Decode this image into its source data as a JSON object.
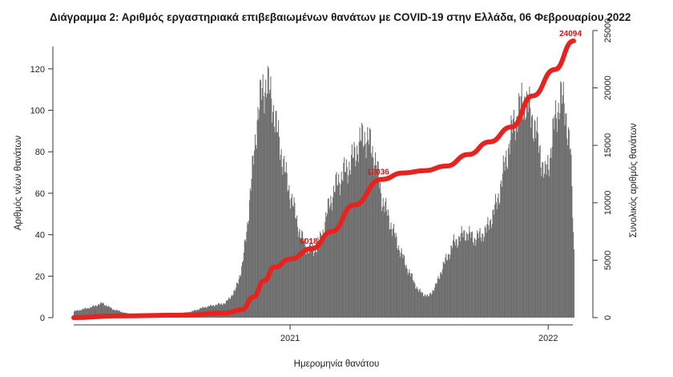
{
  "chart_data": {
    "type": "bar",
    "title": "Διάγραμμα 2: Αριθμός εργαστηριακά επιβεβαιωμένων θανάτων με COVID-19 στην Ελλάδα, 06 Φεβρουαρίου 2022",
    "xlabel": "Ημερομηνία θανάτου",
    "ylabel": "Αριθμός νέων θανάτων",
    "y2label": "Συνολικός αριθμός θανάτων",
    "x_ticks": [
      "2021",
      "2022"
    ],
    "y_ticks": [
      0,
      20,
      40,
      60,
      80,
      100,
      120
    ],
    "y2_ticks": [
      0,
      5000,
      10000,
      15000,
      20000,
      25000
    ],
    "ylim": [
      0,
      130
    ],
    "y2lim": [
      0,
      25000
    ],
    "xlim": [
      "2020-03-01",
      "2022-02-06"
    ],
    "grid": false,
    "series": [
      {
        "type": "bar",
        "color": "#6e6e6e",
        "points": [
          [
            "2020-03-01",
            3
          ],
          [
            "2020-03-25",
            5
          ],
          [
            "2020-04-10",
            7
          ],
          [
            "2020-04-25",
            4
          ],
          [
            "2020-05-15",
            2
          ],
          [
            "2020-06-15",
            1
          ],
          [
            "2020-07-15",
            1
          ],
          [
            "2020-08-15",
            3
          ],
          [
            "2020-09-01",
            5
          ],
          [
            "2020-09-15",
            6
          ],
          [
            "2020-10-01",
            7
          ],
          [
            "2020-10-15",
            13
          ],
          [
            "2020-10-25",
            25
          ],
          [
            "2020-11-01",
            45
          ],
          [
            "2020-11-08",
            70
          ],
          [
            "2020-11-15",
            96
          ],
          [
            "2020-11-22",
            110
          ],
          [
            "2020-11-29",
            113
          ],
          [
            "2020-12-06",
            105
          ],
          [
            "2020-12-13",
            90
          ],
          [
            "2020-12-20",
            78
          ],
          [
            "2020-12-27",
            66
          ],
          [
            "2021-01-05",
            54
          ],
          [
            "2021-01-15",
            40
          ],
          [
            "2021-01-25",
            33
          ],
          [
            "2021-02-05",
            33
          ],
          [
            "2021-02-15",
            40
          ],
          [
            "2021-02-25",
            55
          ],
          [
            "2021-03-08",
            65
          ],
          [
            "2021-03-18",
            70
          ],
          [
            "2021-03-28",
            75
          ],
          [
            "2021-04-07",
            83
          ],
          [
            "2021-04-15",
            88
          ],
          [
            "2021-04-22",
            85
          ],
          [
            "2021-05-01",
            76
          ],
          [
            "2021-05-10",
            58
          ],
          [
            "2021-05-20",
            48
          ],
          [
            "2021-06-01",
            36
          ],
          [
            "2021-06-15",
            24
          ],
          [
            "2021-07-01",
            13
          ],
          [
            "2021-07-15",
            10
          ],
          [
            "2021-07-25",
            15
          ],
          [
            "2021-08-05",
            25
          ],
          [
            "2021-08-20",
            36
          ],
          [
            "2021-09-05",
            41
          ],
          [
            "2021-09-20",
            38
          ],
          [
            "2021-10-05",
            42
          ],
          [
            "2021-10-20",
            55
          ],
          [
            "2021-11-01",
            75
          ],
          [
            "2021-11-10",
            90
          ],
          [
            "2021-11-20",
            100
          ],
          [
            "2021-11-28",
            106
          ],
          [
            "2021-12-05",
            100
          ],
          [
            "2021-12-12",
            93
          ],
          [
            "2021-12-20",
            80
          ],
          [
            "2021-12-27",
            68
          ],
          [
            "2022-01-03",
            78
          ],
          [
            "2022-01-10",
            95
          ],
          [
            "2022-01-18",
            107
          ],
          [
            "2022-01-25",
            100
          ],
          [
            "2022-02-01",
            80
          ],
          [
            "2022-02-06",
            32
          ]
        ]
      },
      {
        "type": "line",
        "name": "",
        "axis": "right",
        "color": "#e8231f",
        "points": [
          [
            "2020-03-01",
            0
          ],
          [
            "2020-05-01",
            150
          ],
          [
            "2020-08-01",
            220
          ],
          [
            "2020-10-01",
            400
          ],
          [
            "2020-10-25",
            700
          ],
          [
            "2020-11-10",
            1800
          ],
          [
            "2020-11-25",
            3200
          ],
          [
            "2020-12-10",
            4400
          ],
          [
            "2021-01-01",
            5100
          ],
          [
            "2021-02-01",
            6018
          ],
          [
            "2021-03-01",
            7500
          ],
          [
            "2021-04-01",
            9800
          ],
          [
            "2021-05-10",
            12036
          ],
          [
            "2021-06-10",
            12600
          ],
          [
            "2021-07-10",
            12800
          ],
          [
            "2021-08-10",
            13200
          ],
          [
            "2021-09-10",
            14200
          ],
          [
            "2021-10-10",
            15300
          ],
          [
            "2021-11-10",
            16600
          ],
          [
            "2021-12-10",
            19300
          ],
          [
            "2022-01-10",
            21600
          ],
          [
            "2022-02-06",
            24094
          ]
        ]
      }
    ],
    "annotations": [
      {
        "label": "6018",
        "x": "2021-02-01",
        "y2": 6018
      },
      {
        "label": "12036",
        "x": "2021-05-10",
        "y2": 12036
      },
      {
        "label": "24094",
        "x": "2022-02-06",
        "y2": 24094
      }
    ]
  }
}
